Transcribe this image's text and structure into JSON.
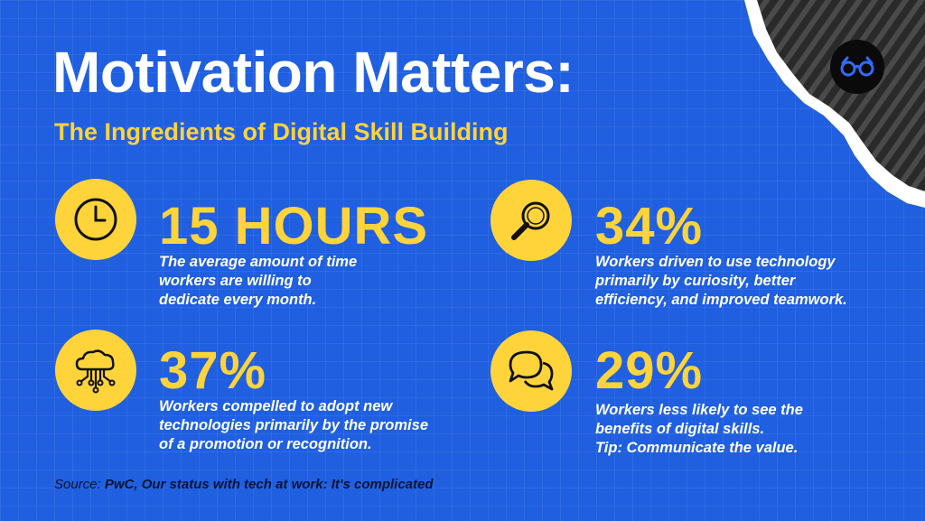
{
  "title": "Motivation Matters:",
  "subtitle": "The Ingredients of Digital Skill Building",
  "brand_logo_icon": "glasses-icon",
  "colors": {
    "background": "#1f5fe0",
    "accent": "#ffd43b",
    "text": "#ffffff",
    "dark": "#0b1530"
  },
  "stats": [
    {
      "icon": "clock-icon",
      "value": "15 HOURS",
      "description_lines": [
        "The average amount of time",
        "workers are willing to",
        "dedicate every month."
      ]
    },
    {
      "icon": "magnifying-glass-icon",
      "value": "34%",
      "description_lines": [
        "Workers driven to use technology",
        "primarily by curiosity, better",
        "efficiency, and improved teamwork."
      ]
    },
    {
      "icon": "cloud-network-icon",
      "value": "37%",
      "description_lines": [
        "Workers compelled to adopt new",
        "technologies primarily by the promise",
        "of a promotion or recognition."
      ]
    },
    {
      "icon": "chat-bubbles-icon",
      "value": "29%",
      "description_lines": [
        "Workers less likely to see the",
        "benefits of digital skills.",
        "Tip: Communicate the value."
      ]
    }
  ],
  "source": {
    "label": "Source: ",
    "text": "PwC, Our status with tech at work: It's complicated"
  }
}
